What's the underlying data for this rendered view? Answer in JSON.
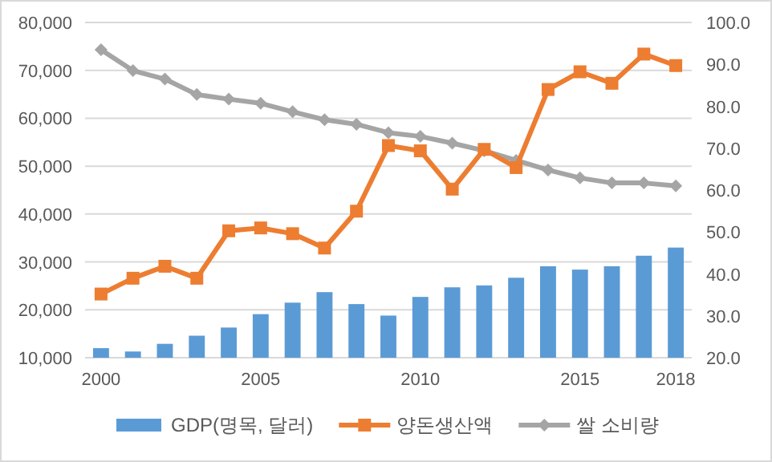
{
  "chart_data": {
    "type": "bar",
    "categories": [
      "2000",
      null,
      null,
      null,
      null,
      "2005",
      null,
      null,
      null,
      null,
      "2010",
      null,
      null,
      null,
      null,
      "2015",
      null,
      null,
      "2018"
    ],
    "series": [
      {
        "name": "GDP(명목, 달러)",
        "color": "#5b9bd5",
        "values": [
          12000,
          11300,
          12900,
          14600,
          16300,
          19100,
          21500,
          23700,
          21200,
          18800,
          22700,
          24700,
          25100,
          26700,
          29100,
          28400,
          29100,
          31300,
          33000
        ]
      },
      {
        "name": "양돈생산액",
        "type": "line",
        "color": "#ed7d31",
        "marker": "square",
        "values": [
          23300,
          26600,
          29100,
          26600,
          36500,
          37100,
          35900,
          32900,
          40600,
          54300,
          53200,
          45200,
          53500,
          49700,
          66000,
          69700,
          67300,
          73400,
          71000
        ]
      },
      {
        "name": "쌀 소비량",
        "type": "line",
        "color": "#a5a5a5",
        "marker": "diamond",
        "axis": "y2",
        "values": [
          93.5,
          88.5,
          86.5,
          82.8,
          81.7,
          80.7,
          78.7,
          76.8,
          75.7,
          73.7,
          72.8,
          71.2,
          69.4,
          67.1,
          64.8,
          62.9,
          61.7,
          61.7,
          61.0
        ]
      }
    ],
    "ylim": [
      10000,
      80000
    ],
    "yticks": [
      {
        "value": 10000,
        "label": "10,000"
      },
      {
        "value": 20000,
        "label": "20,000"
      },
      {
        "value": 30000,
        "label": "30,000"
      },
      {
        "value": 40000,
        "label": "40,000"
      },
      {
        "value": 50000,
        "label": "50,000"
      },
      {
        "value": 60000,
        "label": "60,000"
      },
      {
        "value": 70000,
        "label": "70,000"
      },
      {
        "value": 80000,
        "label": "80,000"
      }
    ],
    "y2lim": [
      20,
      100
    ],
    "y2ticks": [
      {
        "value": 20,
        "label": "20.0"
      },
      {
        "value": 30,
        "label": "30.0"
      },
      {
        "value": 40,
        "label": "40.0"
      },
      {
        "value": 50,
        "label": "50.0"
      },
      {
        "value": 60,
        "label": "60.0"
      },
      {
        "value": 70,
        "label": "70.0"
      },
      {
        "value": 80,
        "label": "80.0"
      },
      {
        "value": 90,
        "label": "90.0"
      },
      {
        "value": 100,
        "label": "100.0"
      }
    ],
    "grid": "y",
    "legend": "bottom"
  }
}
